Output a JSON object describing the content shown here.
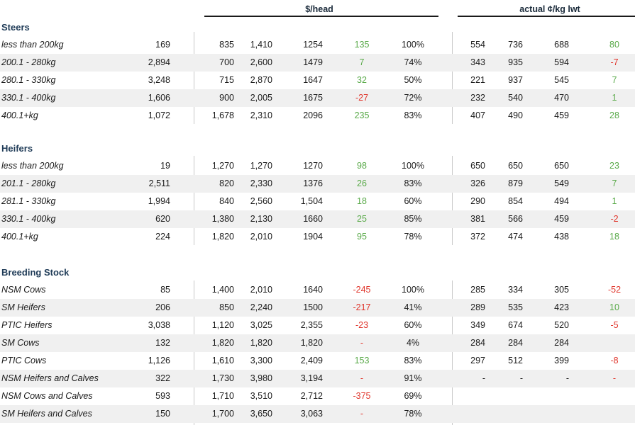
{
  "headers": {
    "per_head": "$/head",
    "per_kg": "actual ¢/kg lwt"
  },
  "colors": {
    "positive": "#5aaa4a",
    "negative": "#e0342a",
    "section": "#1f3b57",
    "shade": "#f0f0f0"
  },
  "sections": [
    {
      "title": "Steers",
      "rows": [
        {
          "label": "less than 200kg",
          "head": "169",
          "min": "835",
          "max": "1,410",
          "avg": "1254",
          "chg": "135",
          "chg_sign": "pos",
          "clear": "100%",
          "kmin": "554",
          "kmax": "736",
          "kavg": "688",
          "kchg": "80",
          "kchg_sign": "pos"
        },
        {
          "label": "200.1 - 280kg",
          "head": "2,894",
          "min": "700",
          "max": "2,600",
          "avg": "1479",
          "chg": "7",
          "chg_sign": "pos",
          "clear": "74%",
          "kmin": "343",
          "kmax": "935",
          "kavg": "594",
          "kchg": "-7",
          "kchg_sign": "neg"
        },
        {
          "label": "280.1 - 330kg",
          "head": "3,248",
          "min": "715",
          "max": "2,870",
          "avg": "1647",
          "chg": "32",
          "chg_sign": "pos",
          "clear": "50%",
          "kmin": "221",
          "kmax": "937",
          "kavg": "545",
          "kchg": "7",
          "kchg_sign": "pos"
        },
        {
          "label": "330.1 - 400kg",
          "head": "1,606",
          "min": "900",
          "max": "2,005",
          "avg": "1675",
          "chg": "-27",
          "chg_sign": "neg",
          "clear": "72%",
          "kmin": "232",
          "kmax": "540",
          "kavg": "470",
          "kchg": "1",
          "kchg_sign": "pos"
        },
        {
          "label": "400.1+kg",
          "head": "1,072",
          "min": "1,678",
          "max": "2,310",
          "avg": "2096",
          "chg": "235",
          "chg_sign": "pos",
          "clear": "83%",
          "kmin": "407",
          "kmax": "490",
          "kavg": "459",
          "kchg": "28",
          "kchg_sign": "pos"
        }
      ]
    },
    {
      "title": "Heifers",
      "rows": [
        {
          "label": "less than 200kg",
          "head": "19",
          "min": "1,270",
          "max": "1,270",
          "avg": "1270",
          "chg": "98",
          "chg_sign": "pos",
          "clear": "100%",
          "kmin": "650",
          "kmax": "650",
          "kavg": "650",
          "kchg": "23",
          "kchg_sign": "pos"
        },
        {
          "label": "201.1 - 280kg",
          "head": "2,511",
          "min": "820",
          "max": "2,330",
          "avg": "1376",
          "chg": "26",
          "chg_sign": "pos",
          "clear": "83%",
          "kmin": "326",
          "kmax": "879",
          "kavg": "549",
          "kchg": "7",
          "kchg_sign": "pos"
        },
        {
          "label": "281.1 - 330kg",
          "head": "1,994",
          "min": "840",
          "max": "2,560",
          "avg": "1,504",
          "chg": "18",
          "chg_sign": "pos",
          "clear": "60%",
          "kmin": "290",
          "kmax": "854",
          "kavg": "494",
          "kchg": "1",
          "kchg_sign": "pos"
        },
        {
          "label": "330.1 - 400kg",
          "head": "620",
          "min": "1,380",
          "max": "2,130",
          "avg": "1660",
          "chg": "25",
          "chg_sign": "pos",
          "clear": "85%",
          "kmin": "381",
          "kmax": "566",
          "kavg": "459",
          "kchg": "-2",
          "kchg_sign": "neg"
        },
        {
          "label": "400.1+kg",
          "head": "224",
          "min": "1,820",
          "max": "2,010",
          "avg": "1904",
          "chg": "95",
          "chg_sign": "pos",
          "clear": "78%",
          "kmin": "372",
          "kmax": "474",
          "kavg": "438",
          "kchg": "18",
          "kchg_sign": "pos"
        }
      ]
    },
    {
      "title": "Breeding Stock",
      "rows": [
        {
          "label": "NSM Cows",
          "head": "85",
          "min": "1,400",
          "max": "2,010",
          "avg": "1640",
          "chg": "-245",
          "chg_sign": "neg",
          "clear": "100%",
          "kmin": "285",
          "kmax": "334",
          "kavg": "305",
          "kchg": "-52",
          "kchg_sign": "neg"
        },
        {
          "label": "SM Heifers",
          "head": "206",
          "min": "850",
          "max": "2,240",
          "avg": "1500",
          "chg": "-217",
          "chg_sign": "neg",
          "clear": "41%",
          "kmin": "289",
          "kmax": "535",
          "kavg": "423",
          "kchg": "10",
          "kchg_sign": "pos"
        },
        {
          "label": "PTIC Heifers",
          "head": "3,038",
          "min": "1,120",
          "max": "3,025",
          "avg": "2,355",
          "chg": "-23",
          "chg_sign": "neg",
          "clear": "60%",
          "kmin": "349",
          "kmax": "674",
          "kavg": "520",
          "kchg": "-5",
          "kchg_sign": "neg"
        },
        {
          "label": "SM Cows",
          "head": "132",
          "min": "1,820",
          "max": "1,820",
          "avg": "1,820",
          "chg": "-",
          "chg_sign": "neg",
          "clear": "4%",
          "kmin": "284",
          "kmax": "284",
          "kavg": "284",
          "kchg": "",
          "kchg_sign": ""
        },
        {
          "label": "PTIC Cows",
          "head": "1,126",
          "min": "1,610",
          "max": "3,300",
          "avg": "2,409",
          "chg": "153",
          "chg_sign": "pos",
          "clear": "83%",
          "kmin": "297",
          "kmax": "512",
          "kavg": "399",
          "kchg": "-8",
          "kchg_sign": "neg"
        },
        {
          "label": "NSM Heifers and Calves",
          "head": "322",
          "min": "1,730",
          "max": "3,980",
          "avg": "3,194",
          "chg": "-",
          "chg_sign": "neg",
          "clear": "91%",
          "kmin": "-",
          "kmax": "-",
          "kavg": "-",
          "kchg": "-",
          "kchg_sign": "neg"
        },
        {
          "label": "NSM Cows and Calves",
          "head": "593",
          "min": "1,710",
          "max": "3,510",
          "avg": "2,712",
          "chg": "-375",
          "chg_sign": "neg",
          "clear": "69%",
          "kmin": "",
          "kmax": "",
          "kavg": "",
          "kchg": "",
          "kchg_sign": ""
        },
        {
          "label": "SM Heifers and Calves",
          "head": "150",
          "min": "1,700",
          "max": "3,650",
          "avg": "3,063",
          "chg": "-",
          "chg_sign": "neg",
          "clear": "78%",
          "kmin": "",
          "kmax": "",
          "kavg": "",
          "kchg": "",
          "kchg_sign": ""
        }
      ]
    }
  ]
}
